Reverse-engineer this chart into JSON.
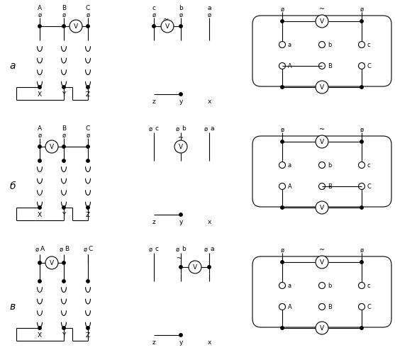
{
  "bg_color": "#ffffff",
  "line_color": "#000000",
  "row_labels": [
    "a",
    "б",
    "в"
  ],
  "fig_width": 5.57,
  "fig_height": 5.11,
  "dpi": 100
}
